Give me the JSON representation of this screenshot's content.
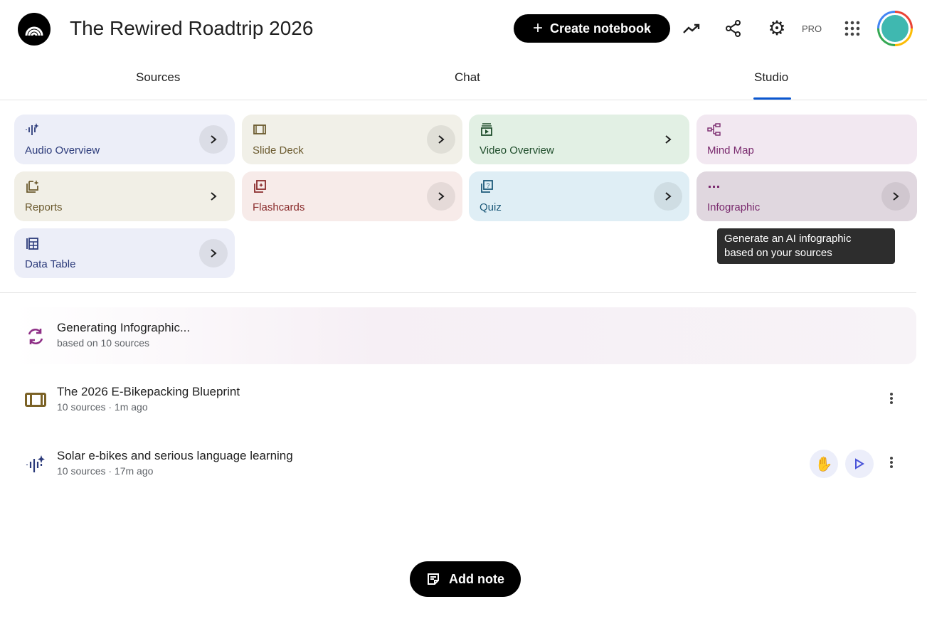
{
  "header": {
    "title": "The Rewired Roadtrip 2026",
    "create_label": "Create notebook",
    "pro_label": "PRO"
  },
  "tabs": [
    {
      "label": "Sources"
    },
    {
      "label": "Chat"
    },
    {
      "label": "Studio",
      "active": true
    }
  ],
  "studio_tools": [
    {
      "label": "Audio Overview",
      "icon": "audio-waveform-sparkle-icon",
      "bg": "#eceef8",
      "color": "#2b3a7a"
    },
    {
      "label": "Slide Deck",
      "icon": "slide-deck-icon",
      "bg": "#f1f0e8",
      "color": "#6b5a2e"
    },
    {
      "label": "Video Overview",
      "icon": "video-icon",
      "bg": "#e2f0e4",
      "color": "#1f4d2b"
    },
    {
      "label": "Mind Map",
      "icon": "mind-map-icon",
      "bg": "#f2e8f1",
      "color": "#7a2a6e"
    },
    {
      "label": "Reports",
      "icon": "reports-icon",
      "bg": "#f1efe6",
      "color": "#6b5a2e"
    },
    {
      "label": "Flashcards",
      "icon": "flashcards-icon",
      "bg": "#f7ebe9",
      "color": "#8a2c2c"
    },
    {
      "label": "Quiz",
      "icon": "quiz-icon",
      "bg": "#dfeef5",
      "color": "#1d5a7a"
    },
    {
      "label": "Infographic",
      "icon": "infographic-icon",
      "bg": "#e0d7df",
      "color": "#7a2a6e"
    },
    {
      "label": "Data Table",
      "icon": "data-table-icon",
      "bg": "#eceef8",
      "color": "#2b3a7a"
    }
  ],
  "tooltip": {
    "line1": "Generate an AI infographic",
    "line2": "based on your sources"
  },
  "outputs": [
    {
      "title": "Generating Infographic...",
      "subtitle": "based on 10 sources",
      "icon": "sync-icon"
    },
    {
      "title": "The 2026 E-Bikepacking Blueprint",
      "subtitle": "10 sources · 1m ago",
      "icon": "slide-deck-icon"
    },
    {
      "title": "Solar e-bikes and serious language learning",
      "subtitle": "10 sources · 17m ago",
      "icon": "audio-waveform-sparkle-icon"
    }
  ],
  "add_note_label": "Add note"
}
